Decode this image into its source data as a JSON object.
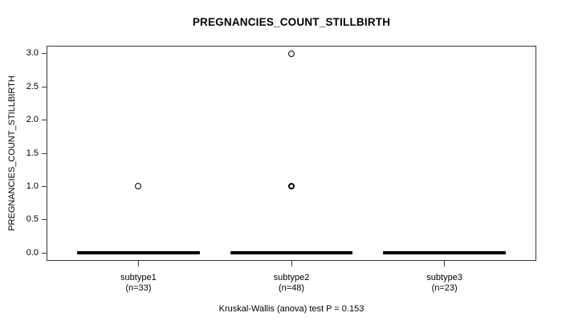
{
  "chart_data": {
    "type": "boxplot",
    "title": "PREGNANCIES_COUNT_STILLBIRTH",
    "ylabel": "PREGNANCIES_COUNT_STILLBIRTH",
    "xlabel": "",
    "ylim": [
      0,
      3
    ],
    "y_ticks": [
      "0.0",
      "0.5",
      "1.0",
      "1.5",
      "2.0",
      "2.5",
      "3.0"
    ],
    "y_tick_values": [
      0,
      0.5,
      1,
      1.5,
      2,
      2.5,
      3
    ],
    "grid": false,
    "legend": "none",
    "annotation": "Kruskal-Wallis (anova) test P = 0.153",
    "groups": [
      {
        "label": "subtype1",
        "n_label": "(n=33)",
        "n": 33,
        "median": 0,
        "q1": 0,
        "q3": 0,
        "whisker_low": 0,
        "whisker_high": 0,
        "outliers": [
          {
            "value": 1.0,
            "bold": false
          }
        ]
      },
      {
        "label": "subtype2",
        "n_label": "(n=48)",
        "n": 48,
        "median": 0,
        "q1": 0,
        "q3": 0,
        "whisker_low": 0,
        "whisker_high": 0,
        "outliers": [
          {
            "value": 3.0,
            "bold": false
          },
          {
            "value": 1.0,
            "bold": true
          }
        ]
      },
      {
        "label": "subtype3",
        "n_label": "(n=23)",
        "n": 23,
        "median": 0,
        "q1": 0,
        "q3": 0,
        "whisker_low": 0,
        "whisker_high": 0,
        "outliers": []
      }
    ],
    "colors": {
      "stroke": "#000000",
      "axis": "#3a3a3a",
      "background": "#ffffff"
    }
  }
}
